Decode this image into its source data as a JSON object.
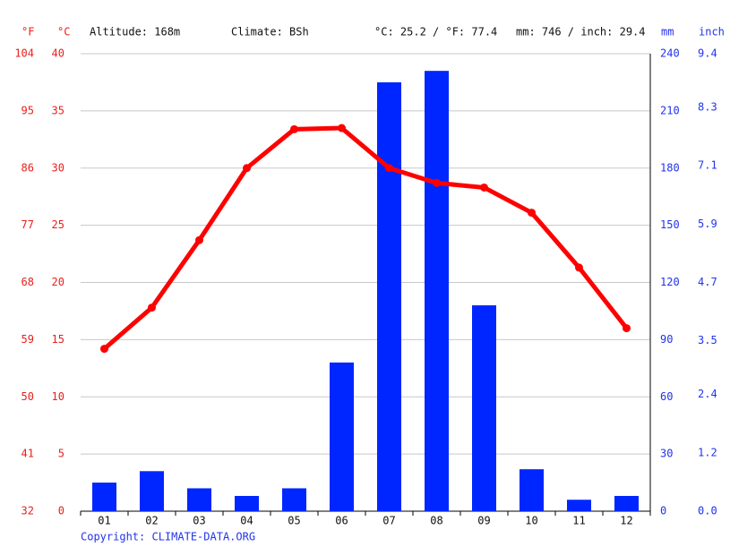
{
  "chart_data": {
    "type": "climate",
    "header": {
      "f_unit": "°F",
      "c_unit": "°C",
      "altitude": "Altitude: 168m",
      "climate": "Climate: BSh",
      "temp_summary": "°C: 25.2 / °F: 77.4",
      "precip_summary": "mm: 746 / inch: 29.4",
      "mm_unit": "mm",
      "inch_unit": "inch"
    },
    "categories": [
      "01",
      "02",
      "03",
      "04",
      "05",
      "06",
      "07",
      "08",
      "09",
      "10",
      "11",
      "12"
    ],
    "series": [
      {
        "name": "Temperature",
        "color": "#ff0000",
        "axis": "y",
        "values": [
          14.2,
          17.8,
          23.7,
          30.0,
          33.4,
          33.5,
          30.0,
          28.7,
          28.3,
          26.1,
          21.3,
          16.0
        ]
      },
      {
        "name": "Precipitation",
        "color": "#0026ff",
        "axis": "y2",
        "values": [
          15,
          21,
          12,
          8,
          12,
          78,
          225,
          231,
          108,
          22,
          6,
          8
        ]
      }
    ],
    "ylim": [
      0,
      40
    ],
    "yticks": [
      0,
      5,
      10,
      15,
      20,
      25,
      30,
      35,
      40
    ],
    "flim": [
      32,
      104
    ],
    "fticks": [
      32,
      41,
      50,
      59,
      68,
      77,
      86,
      95,
      104
    ],
    "y2lim": [
      0,
      240
    ],
    "y2ticks": [
      0,
      30,
      60,
      90,
      120,
      150,
      180,
      210,
      240
    ],
    "y3lim": [
      0,
      9.4
    ],
    "y3ticks": [
      {
        "value": 0,
        "label": "0.0"
      },
      1.2,
      2.4,
      3.5,
      4.7,
      5.9,
      7.1,
      8.3,
      9.4
    ],
    "grid": true,
    "copyright": "Copyright: CLIMATE-DATA.ORG"
  }
}
